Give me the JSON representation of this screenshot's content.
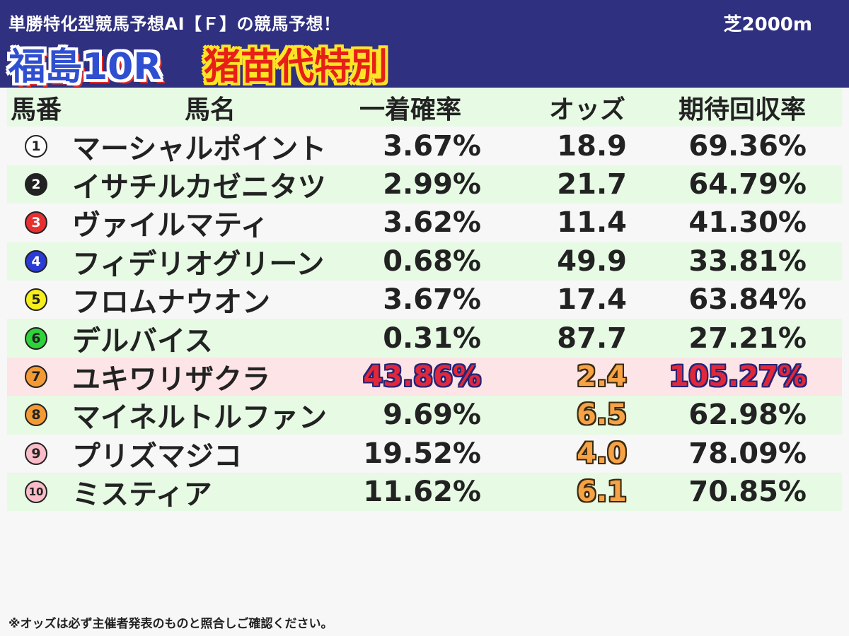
{
  "header": {
    "subtitle": "単勝特化型競馬予想AI【Ｆ】の競馬予想！",
    "course": "芝2000m",
    "race_number": "福島10R",
    "race_name": "猪苗代特別"
  },
  "table": {
    "columns": [
      "馬番",
      "馬名",
      "一着確率",
      "オッズ",
      "期待回収率"
    ],
    "rows": [
      {
        "num": "1",
        "name": "マーシャルポイント",
        "win_prob": "3.67%",
        "odds": "18.9",
        "return_rate": "69.36%",
        "badge_bg": "#ffffff",
        "badge_fg": "#222222"
      },
      {
        "num": "2",
        "name": "イサチルカゼニタツ",
        "win_prob": "2.99%",
        "odds": "21.7",
        "return_rate": "64.79%",
        "badge_bg": "#222222",
        "badge_fg": "#ffffff"
      },
      {
        "num": "3",
        "name": "ヴァイルマティ",
        "win_prob": "3.62%",
        "odds": "11.4",
        "return_rate": "41.30%",
        "badge_bg": "#e83030",
        "badge_fg": "#ffffff"
      },
      {
        "num": "4",
        "name": "フィデリオグリーン",
        "win_prob": "0.68%",
        "odds": "49.9",
        "return_rate": "33.81%",
        "badge_bg": "#2a3bd6",
        "badge_fg": "#ffffff"
      },
      {
        "num": "5",
        "name": "フロムナウオン",
        "win_prob": "3.67%",
        "odds": "17.4",
        "return_rate": "63.84%",
        "badge_bg": "#f5ee1c",
        "badge_fg": "#222222"
      },
      {
        "num": "6",
        "name": "デルバイス",
        "win_prob": "0.31%",
        "odds": "87.7",
        "return_rate": "27.21%",
        "badge_bg": "#2ed33a",
        "badge_fg": "#222222"
      },
      {
        "num": "7",
        "name": "ユキワリザクラ",
        "win_prob": "43.86%",
        "odds": "2.4",
        "return_rate": "105.27%",
        "badge_bg": "#f39a35",
        "badge_fg": "#222222"
      },
      {
        "num": "8",
        "name": "マイネルトルファン",
        "win_prob": "9.69%",
        "odds": "6.5",
        "return_rate": "62.98%",
        "badge_bg": "#f39a35",
        "badge_fg": "#222222"
      },
      {
        "num": "9",
        "name": "プリズマジコ",
        "win_prob": "19.52%",
        "odds": "4.0",
        "return_rate": "78.09%",
        "badge_bg": "#f9bcc8",
        "badge_fg": "#222222"
      },
      {
        "num": "10",
        "name": "ミスティア",
        "win_prob": "11.62%",
        "odds": "6.1",
        "return_rate": "70.85%",
        "badge_bg": "#f9bcc8",
        "badge_fg": "#222222"
      }
    ]
  },
  "footer": {
    "note": "※オッズは必ず主催者発表のものと照合しご確認ください。"
  }
}
